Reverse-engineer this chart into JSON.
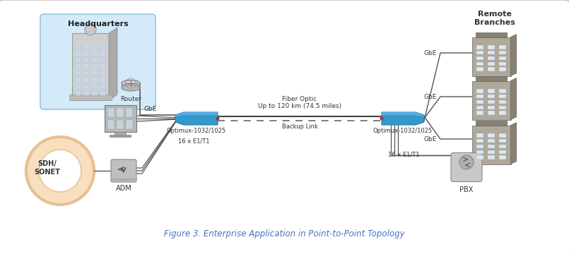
{
  "title": "Figure 3. Enterprise Application in Point-to-Point Topology",
  "title_color": "#4472C4",
  "bg_color": "#ffffff",
  "border_color": "#bbbbbb",
  "hq_box_color": "#cce8f8",
  "hq_label": "Headquarters",
  "router_label": "Router",
  "sdh_label": "SDH/\nSONET",
  "adm_label": "ADM",
  "remote_label": "Remote\nBranches",
  "pbx_label": "PBX",
  "gbe_labels": [
    "GbE",
    "GbE",
    "GbE"
  ],
  "optimux_left_label": "Optimux-1032/1025",
  "optimux_right_label": "Optimux-1032/1025",
  "fiber_label": "Fiber Optic\nUp to 120 km (74.5 miles)",
  "backup_label": "Backup Link",
  "e1t1_left": "16 x E1/T1",
  "e1t1_right": "16 x E1/T1",
  "gbe_left_label": "GbE",
  "optimux_blue": "#3399cc",
  "optimux_light": "#66bbee",
  "optimux_dark": "#1166aa",
  "line_color": "#555555",
  "building_main": "#b0a898",
  "building_dark": "#888070",
  "building_light": "#d8d0c8",
  "hq_building_main": "#c8c8c8",
  "hq_building_dark": "#aaaaaa"
}
